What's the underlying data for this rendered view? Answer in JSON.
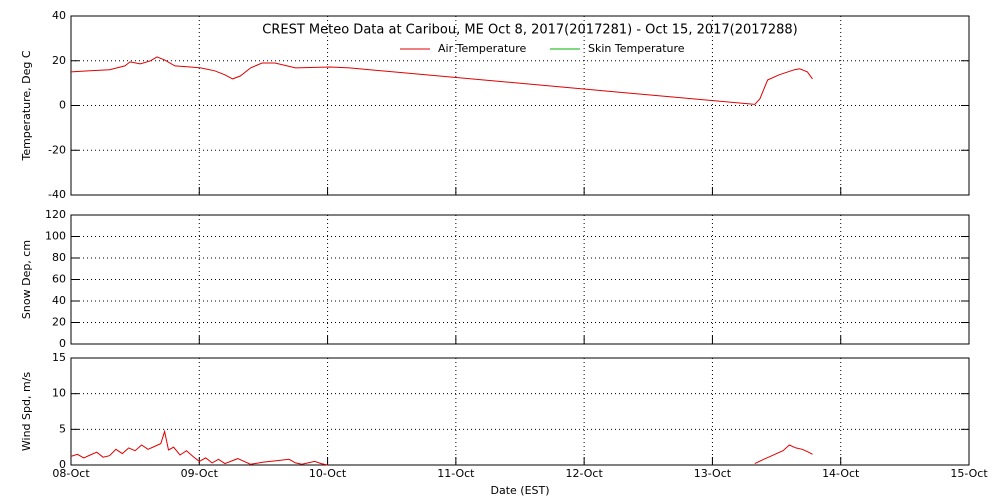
{
  "chart_data": [
    {
      "type": "line",
      "title": "CREST Meteo Data at Caribou, ME   Oct  8, 2017(2017281) - Oct 15, 2017(2017288)",
      "y_label": "Temperature, Deg C",
      "x": [
        8.0,
        8.15,
        8.3,
        8.42,
        8.46,
        8.54,
        8.62,
        8.67,
        8.73,
        8.81,
        8.93,
        9.01,
        9.12,
        9.2,
        9.26,
        9.32,
        9.4,
        9.49,
        9.59,
        9.75,
        10.02,
        10.17,
        13.33,
        13.37,
        13.43,
        13.52,
        13.64,
        13.68,
        13.74,
        13.78
      ],
      "series": [
        {
          "name": "Air Temperature",
          "color": "#e00000",
          "values": [
            15,
            15.5,
            16,
            17.7,
            19.5,
            18.6,
            20,
            21.7,
            20.4,
            17.7,
            17.2,
            16.8,
            15.5,
            13.7,
            11.9,
            13.2,
            16.8,
            19,
            19,
            16.8,
            17.2,
            16.8,
            0.5,
            3,
            11.4,
            13.7,
            16,
            16.4,
            15,
            11.9
          ]
        },
        {
          "name": "Skin Temperature",
          "color": "#00b000",
          "values": [
            null,
            null,
            null,
            null,
            null,
            null,
            null,
            null,
            null,
            null,
            null,
            null,
            null,
            null,
            null,
            null,
            null,
            null,
            null,
            null,
            null,
            null,
            null,
            null,
            null,
            null,
            null,
            null,
            null,
            null
          ]
        }
      ],
      "xlim": [
        8,
        15
      ],
      "xticks": [
        8,
        9,
        10,
        11,
        12,
        13,
        14,
        15
      ],
      "ylim": [
        -40,
        40
      ],
      "yticks": [
        -40,
        -20,
        0,
        20,
        40
      ],
      "grid": true
    },
    {
      "type": "line",
      "y_label": "Snow Dep, cm",
      "x": [],
      "series": [],
      "xlim": [
        8,
        15
      ],
      "xticks": [
        8,
        9,
        10,
        11,
        12,
        13,
        14,
        15
      ],
      "ylim": [
        0,
        120
      ],
      "yticks": [
        0,
        20,
        40,
        60,
        80,
        100,
        120
      ],
      "grid": true
    },
    {
      "type": "line",
      "y_label": "Wind Spd, m/s",
      "x_label": "Date (EST)",
      "x": [
        8.0,
        8.05,
        8.1,
        8.15,
        8.2,
        8.25,
        8.3,
        8.35,
        8.4,
        8.45,
        8.5,
        8.55,
        8.6,
        8.65,
        8.7,
        8.73,
        8.76,
        8.8,
        8.85,
        8.9,
        8.95,
        9.0,
        9.05,
        9.1,
        9.15,
        9.2,
        9.3,
        9.4,
        9.5,
        9.6,
        9.7,
        9.75,
        9.8,
        9.9,
        9.95,
        10.0,
        11.0,
        13.33,
        13.4,
        13.45,
        13.5,
        13.55,
        13.6,
        13.65,
        13.7,
        13.75,
        13.78
      ],
      "series": [
        {
          "name": "Wind Speed",
          "color": "#e00000",
          "values": [
            1.2,
            1.5,
            1.0,
            1.4,
            1.8,
            1.1,
            1.3,
            2.2,
            1.6,
            2.4,
            2.0,
            2.8,
            2.2,
            2.6,
            3.0,
            4.7,
            2.1,
            2.5,
            1.4,
            2.0,
            1.2,
            0.5,
            1.0,
            0.3,
            0.8,
            0.2,
            0.9,
            0.1,
            0.4,
            0.6,
            0.8,
            0.3,
            0.1,
            0.5,
            0.2,
            0,
            null,
            0.2,
            0.8,
            1.2,
            1.6,
            2.0,
            2.8,
            2.4,
            2.2,
            1.8,
            1.5
          ]
        }
      ],
      "xlim": [
        8,
        15
      ],
      "xticks": [
        {
          "value": 8,
          "label": "08-Oct"
        },
        {
          "value": 9,
          "label": "09-Oct"
        },
        {
          "value": 10,
          "label": "10-Oct"
        },
        {
          "value": 11,
          "label": "11-Oct"
        },
        {
          "value": 12,
          "label": "12-Oct"
        },
        {
          "value": 13,
          "label": "13-Oct"
        },
        {
          "value": 14,
          "label": "14-Oct"
        },
        {
          "value": 15,
          "label": "15-Oct"
        }
      ],
      "ylim": [
        0,
        15
      ],
      "yticks": [
        0,
        5,
        10,
        15
      ],
      "grid": true
    }
  ]
}
